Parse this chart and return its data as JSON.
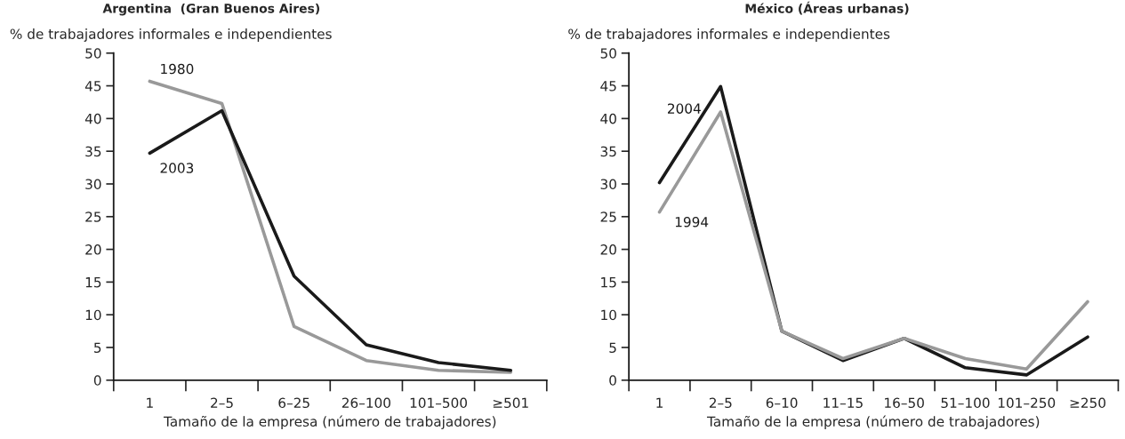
{
  "chart_data": [
    {
      "type": "line",
      "title": "Argentina  (Gran Buenos Aires)",
      "ylabel": "% de trabajadores informales e independientes",
      "xlabel": "Tamaño de la empresa (número de trabajadores)",
      "categories": [
        "1",
        "2–5",
        "6–25",
        "26–100",
        "101–500",
        "≥501"
      ],
      "series": [
        {
          "name": "1980",
          "color": "#999999",
          "values": [
            45.7,
            42.3,
            8.2,
            3.0,
            1.5,
            1.2
          ]
        },
        {
          "name": "2003",
          "color": "#1a1a1a",
          "values": [
            34.7,
            41.2,
            15.9,
            5.4,
            2.7,
            1.5
          ]
        }
      ],
      "ylim": [
        0,
        50
      ],
      "yticks": [
        0,
        5,
        10,
        15,
        20,
        25,
        30,
        35,
        40,
        45,
        50
      ],
      "grid": false,
      "legend": false
    },
    {
      "type": "line",
      "title": "México (Áreas urbanas)",
      "ylabel": "% de trabajadores informales e independientes",
      "xlabel": "Tamaño de la empresa (número de trabajadores)",
      "categories": [
        "1",
        "2–5",
        "6–10",
        "11–15",
        "16–50",
        "51–100",
        "101–250",
        "≥250"
      ],
      "series": [
        {
          "name": "2004",
          "color": "#1a1a1a",
          "values": [
            30.2,
            44.9,
            7.5,
            3.0,
            6.4,
            1.9,
            0.8,
            6.6
          ]
        },
        {
          "name": "1994",
          "color": "#999999",
          "values": [
            25.7,
            41.0,
            7.5,
            3.3,
            6.4,
            3.3,
            1.7,
            12.0
          ]
        }
      ],
      "ylim": [
        0,
        50
      ],
      "yticks": [
        0,
        5,
        10,
        15,
        20,
        25,
        30,
        35,
        40,
        45,
        50
      ],
      "grid": false,
      "legend": false
    }
  ]
}
